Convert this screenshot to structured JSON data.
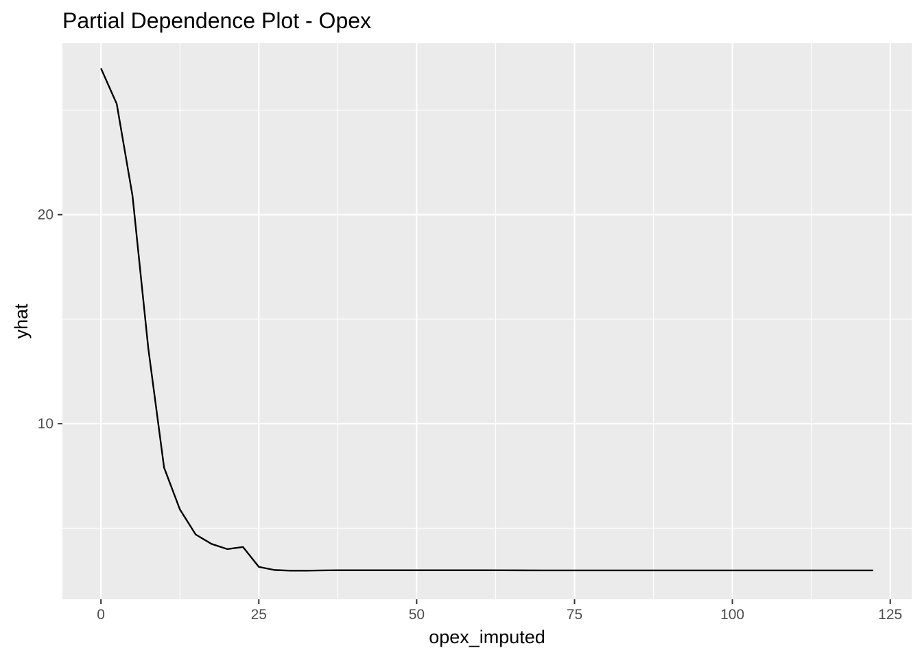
{
  "chart_data": {
    "type": "line",
    "title": "Partial Dependence Plot - Opex",
    "xlabel": "opex_imputed",
    "ylabel": "yhat",
    "xlim": [
      -6.1,
      128.4
    ],
    "ylim": [
      1.6,
      28.2
    ],
    "x_ticks": [
      0,
      25,
      50,
      75,
      100,
      125
    ],
    "x_tick_labels": [
      "0",
      "25",
      "50",
      "75",
      "100",
      "125"
    ],
    "x_minor_ticks": [
      12.5,
      37.5,
      62.5,
      87.5,
      112.5
    ],
    "y_ticks": [
      10,
      20
    ],
    "y_tick_labels": [
      "10",
      "20"
    ],
    "y_minor_ticks": [
      5,
      15,
      25
    ],
    "grid": true,
    "background": "#ebebeb",
    "grid_color": "#ffffff",
    "line_color": "#000000",
    "series": [
      {
        "x": [
          0,
          2.5,
          5,
          7.5,
          10,
          12.5,
          15,
          17.5,
          20,
          22.5,
          25,
          27.5,
          30,
          32.5,
          35,
          37.5,
          40,
          50,
          60,
          70,
          80,
          90,
          100,
          110,
          122.3
        ],
        "y": [
          27.0,
          25.3,
          20.9,
          13.6,
          7.9,
          5.9,
          4.7,
          4.25,
          4.0,
          4.1,
          3.15,
          3.0,
          2.97,
          2.97,
          2.98,
          2.99,
          2.99,
          2.99,
          2.99,
          2.98,
          2.98,
          2.98,
          2.98,
          2.98,
          2.98
        ]
      }
    ]
  }
}
